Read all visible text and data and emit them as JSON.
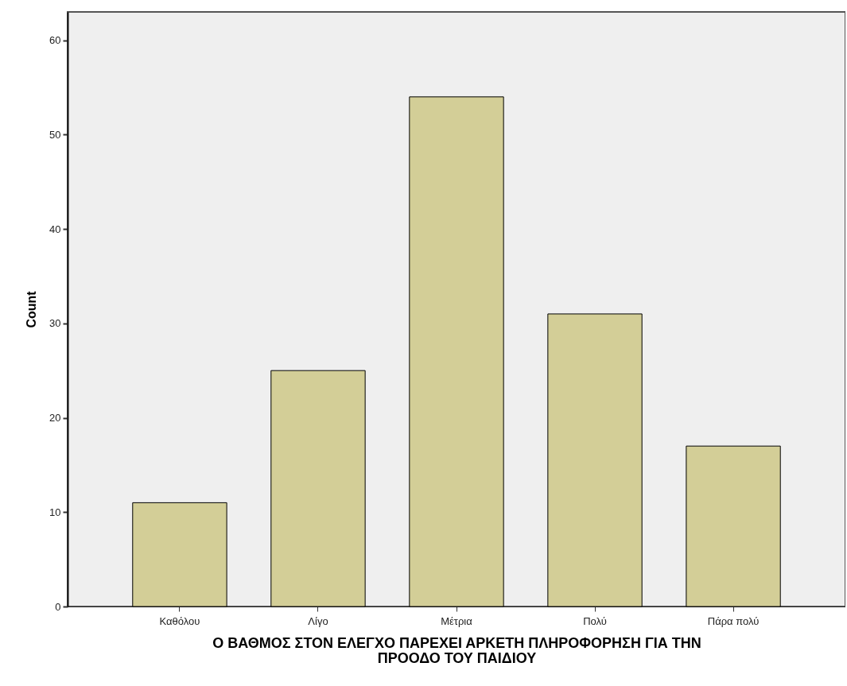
{
  "chart_data": {
    "type": "bar",
    "xlabel": "Ο ΒΑΘΜΟΣ ΣΤΟΝ ΕΛΕΓΧΟ ΠΑΡΕΧΕΙ ΑΡΚΕΤΗ ΠΛΗΡΟΦΟΡΗΣΗ ΓΙΑ ΤΗΝ\nΠΡΟΟΔΟ ΤΟΥ ΠΑΙΔΙΟΥ",
    "ylabel": "Count",
    "categories": [
      "Καθόλου",
      "Λίγο",
      "Μέτρια",
      "Πολύ",
      "Πάρα πολύ"
    ],
    "values": [
      11,
      25,
      54,
      31,
      17
    ],
    "color": "#d3ce97",
    "ylim": [
      0,
      63
    ],
    "yticks": [
      0,
      10,
      20,
      30,
      40,
      50,
      60
    ],
    "grid": false
  }
}
